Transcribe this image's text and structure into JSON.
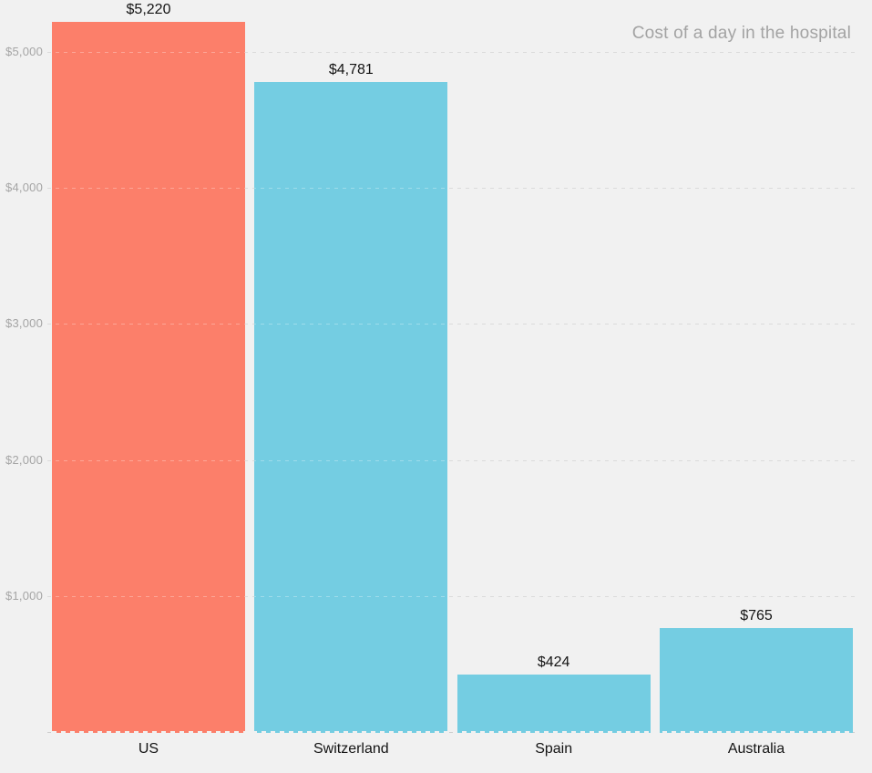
{
  "title": "Cost of a day in the hospital",
  "colors": {
    "background": "#f1f1f1",
    "highlight_bar": "#fc7f6a",
    "default_bar": "#74cde2",
    "grid": "#cccccc",
    "axis_text": "#a5a5a5",
    "title_text": "#a3a3a3",
    "label_text": "#141414"
  },
  "chart_data": {
    "type": "bar",
    "title": "Cost of a day in the hospital",
    "subtitle": "",
    "xlabel": "",
    "ylabel": "",
    "categories": [
      "US",
      "Switzerland",
      "Spain",
      "Australia"
    ],
    "values": [
      5220,
      4781,
      424,
      765
    ],
    "value_labels": [
      "$5,220",
      "$4,781",
      "$424",
      "$765"
    ],
    "bar_colors": [
      "#fc7f6a",
      "#74cde2",
      "#74cde2",
      "#74cde2"
    ],
    "highlighted_category": "US",
    "yticks": [
      {
        "value": 1000,
        "label": "$1,000"
      },
      {
        "value": 2000,
        "label": "$2,000"
      },
      {
        "value": 3000,
        "label": "$3,000"
      },
      {
        "value": 4000,
        "label": "$4,000"
      },
      {
        "value": 5000,
        "label": "$5,000"
      }
    ],
    "ylim": [
      0,
      5220
    ],
    "grid": "horizontal-dashed",
    "legend": "none",
    "title_position": "top-right"
  }
}
